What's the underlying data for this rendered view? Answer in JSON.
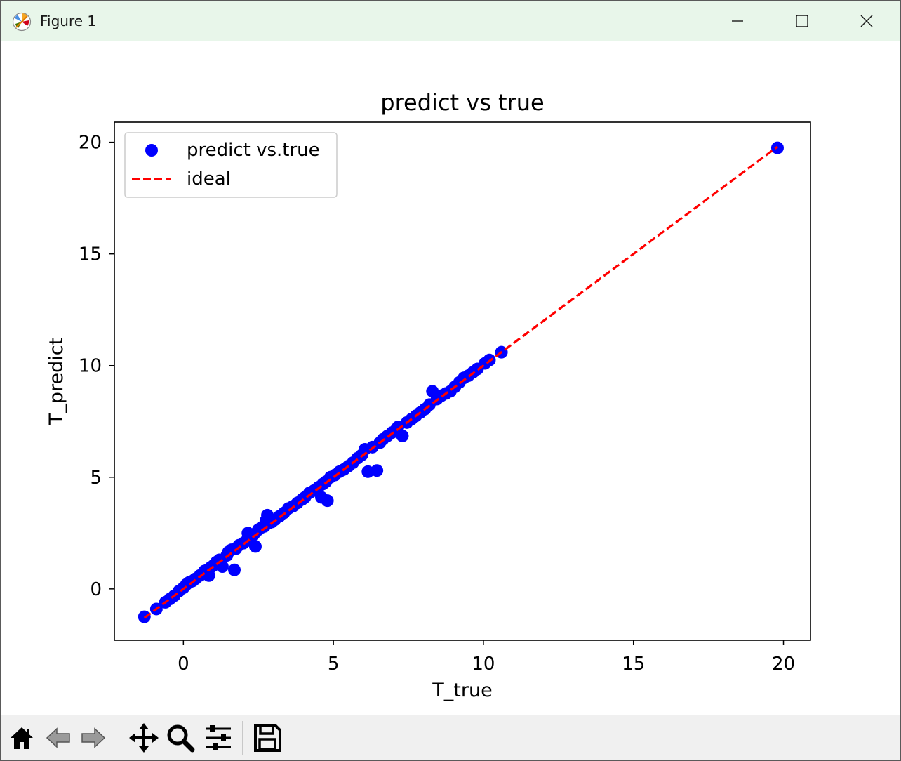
{
  "window": {
    "title": "Figure 1",
    "controls": [
      "minimize",
      "maximize",
      "close"
    ]
  },
  "toolbar": {
    "tools": [
      {
        "name": "home-icon",
        "label": "Home"
      },
      {
        "name": "back-icon",
        "label": "Back"
      },
      {
        "name": "forward-icon",
        "label": "Forward"
      },
      {
        "name": "pan-icon",
        "label": "Pan"
      },
      {
        "name": "zoom-icon",
        "label": "Zoom"
      },
      {
        "name": "configure-subplots-icon",
        "label": "Configure subplots"
      },
      {
        "name": "save-icon",
        "label": "Save"
      }
    ]
  },
  "colors": {
    "titlebar_bg": "#e8f6ea",
    "toolbar_bg": "#f0f0f0",
    "scatter": "#0000ff",
    "ideal_line": "#ff0000"
  },
  "chart_data": {
    "type": "scatter",
    "title": "predict vs true",
    "xlabel": "T_true",
    "ylabel": "T_predict",
    "xlim": [
      -2.3,
      20.9
    ],
    "ylim": [
      -2.3,
      20.9
    ],
    "xticks": [
      0,
      5,
      10,
      15,
      20
    ],
    "yticks": [
      0,
      5,
      10,
      15,
      20
    ],
    "grid": false,
    "legend_position": "top-left",
    "series": [
      {
        "name": "predict vs.true",
        "kind": "scatter",
        "color": "#0000ff",
        "x": [
          -1.3,
          -0.9,
          -0.6,
          -0.45,
          -0.3,
          -0.15,
          0.0,
          0.1,
          0.2,
          0.3,
          0.4,
          0.55,
          0.7,
          0.8,
          0.85,
          0.9,
          1.0,
          1.1,
          1.2,
          1.3,
          1.45,
          1.5,
          1.6,
          1.7,
          1.75,
          1.85,
          2.0,
          2.1,
          2.15,
          2.25,
          2.35,
          2.4,
          2.5,
          2.6,
          2.7,
          2.75,
          2.8,
          2.85,
          2.95,
          3.05,
          3.2,
          3.35,
          3.5,
          3.65,
          3.8,
          3.95,
          4.05,
          4.2,
          4.35,
          4.5,
          4.6,
          4.65,
          4.75,
          4.8,
          4.9,
          5.05,
          5.2,
          5.35,
          5.5,
          5.65,
          5.8,
          5.95,
          6.05,
          6.15,
          6.3,
          6.45,
          6.55,
          6.65,
          6.8,
          6.95,
          7.1,
          7.15,
          7.3,
          7.45,
          7.6,
          7.75,
          7.9,
          8.05,
          8.2,
          8.3,
          8.45,
          8.6,
          8.75,
          8.9,
          9.05,
          9.2,
          9.35,
          9.5,
          9.65,
          9.8,
          10.05,
          10.2,
          10.6,
          19.8
        ],
        "y": [
          -1.25,
          -0.9,
          -0.6,
          -0.45,
          -0.3,
          -0.1,
          0.05,
          0.2,
          0.3,
          0.35,
          0.45,
          0.6,
          0.8,
          0.85,
          0.6,
          0.95,
          1.05,
          1.2,
          1.3,
          1.0,
          1.5,
          1.65,
          1.75,
          0.85,
          1.8,
          1.95,
          2.05,
          2.15,
          2.5,
          2.3,
          2.45,
          1.9,
          2.65,
          2.75,
          2.8,
          3.05,
          3.3,
          2.95,
          3.0,
          3.1,
          3.25,
          3.4,
          3.6,
          3.7,
          3.85,
          4.0,
          4.1,
          4.3,
          4.4,
          4.55,
          4.1,
          4.7,
          4.8,
          3.95,
          5.0,
          5.1,
          5.25,
          5.35,
          5.5,
          5.65,
          5.85,
          6.0,
          6.25,
          5.25,
          6.35,
          5.3,
          6.55,
          6.7,
          6.85,
          7.0,
          7.15,
          7.25,
          6.85,
          7.45,
          7.6,
          7.75,
          7.9,
          8.05,
          8.25,
          8.85,
          8.5,
          8.65,
          8.75,
          8.85,
          9.05,
          9.25,
          9.45,
          9.55,
          9.7,
          9.85,
          10.1,
          10.25,
          10.6,
          19.75
        ]
      },
      {
        "name": "ideal",
        "kind": "line",
        "style": "dashed",
        "color": "#ff0000",
        "x": [
          -1.3,
          19.8
        ],
        "y": [
          -1.3,
          19.8
        ]
      }
    ]
  }
}
